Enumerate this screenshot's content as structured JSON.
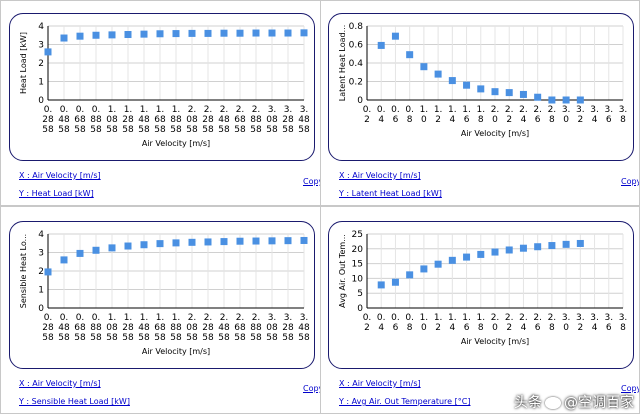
{
  "panels": [
    {
      "id": "heat-load",
      "x_link": "X : Air Velocity [m/s]",
      "y_link": "Y : Heat Load [kW]",
      "copy_label": "Copy",
      "chart_data": {
        "type": "scatter",
        "xlabel": "Air Velocity [m/s]",
        "ylabel": "Heat Load [kW]",
        "ylim": [
          0,
          4
        ],
        "yticks": [
          0,
          1,
          2,
          3,
          4
        ],
        "categories": [
          "0.2858",
          "0.4858",
          "0.6858",
          "0.8858",
          "1.0858",
          "1.2858",
          "1.4858",
          "1.6858",
          "1.8858",
          "2.0858",
          "2.2858",
          "2.4858",
          "2.6858",
          "2.8858",
          "3.0858",
          "3.2858",
          "3.4858"
        ],
        "tick_lines": [
          [
            "0.",
            "28",
            "58"
          ],
          [
            "0.",
            "48",
            "58"
          ],
          [
            "0.",
            "68",
            "58"
          ],
          [
            "0.",
            "88",
            "58"
          ],
          [
            "1.",
            "08",
            "58"
          ],
          [
            "1.",
            "28",
            "58"
          ],
          [
            "1.",
            "48",
            "58"
          ],
          [
            "1.",
            "68",
            "58"
          ],
          [
            "1.",
            "88",
            "58"
          ],
          [
            "2.",
            "08",
            "58"
          ],
          [
            "2.",
            "28",
            "58"
          ],
          [
            "2.",
            "48",
            "58"
          ],
          [
            "2.",
            "68",
            "58"
          ],
          [
            "2.",
            "88",
            "58"
          ],
          [
            "3.",
            "08",
            "58"
          ],
          [
            "3.",
            "28",
            "58"
          ],
          [
            "3.",
            "48",
            "58"
          ]
        ],
        "values": [
          2.6,
          3.35,
          3.45,
          3.5,
          3.52,
          3.54,
          3.56,
          3.58,
          3.59,
          3.6,
          3.6,
          3.61,
          3.61,
          3.62,
          3.62,
          3.62,
          3.63
        ],
        "color": "#4a90e2",
        "grid": true
      }
    },
    {
      "id": "latent-heat-load",
      "x_link": "X : Air Velocity [m/s]",
      "y_link": "Y : Latent Heat Load [kW]",
      "copy_label": "Copy",
      "chart_data": {
        "type": "scatter",
        "xlabel": "Air Velocity [m/s]",
        "ylabel": "Latent Heat Load...",
        "ylim": [
          0,
          0.8
        ],
        "yticks": [
          0,
          0.2,
          0.4,
          0.6,
          0.8
        ],
        "categories": [
          "0.2",
          "0.4",
          "0.6",
          "0.8",
          "1.0",
          "1.2",
          "1.4",
          "1.6",
          "1.8",
          "2.0",
          "2.2",
          "2.4",
          "2.6",
          "2.8",
          "3.0",
          "3.2",
          "3.4",
          "3.6",
          "3.8"
        ],
        "tick_lines": [
          [
            "0.",
            "2"
          ],
          [
            "0.",
            "4"
          ],
          [
            "0.",
            "6"
          ],
          [
            "0.",
            "8"
          ],
          [
            "1.",
            "0"
          ],
          [
            "1.",
            "2"
          ],
          [
            "1.",
            "4"
          ],
          [
            "1.",
            "6"
          ],
          [
            "1.",
            "8"
          ],
          [
            "2.",
            "0"
          ],
          [
            "2.",
            "2"
          ],
          [
            "2.",
            "4"
          ],
          [
            "2.",
            "6"
          ],
          [
            "2.",
            "8"
          ],
          [
            "3.",
            "0"
          ],
          [
            "3.",
            "2"
          ],
          [
            "3.",
            "4"
          ],
          [
            "3.",
            "6"
          ],
          [
            "3.",
            "8"
          ]
        ],
        "points": [
          {
            "i": 1,
            "v": 0.59
          },
          {
            "i": 2,
            "v": 0.69
          },
          {
            "i": 3,
            "v": 0.49
          },
          {
            "i": 4,
            "v": 0.36
          },
          {
            "i": 5,
            "v": 0.28
          },
          {
            "i": 6,
            "v": 0.21
          },
          {
            "i": 7,
            "v": 0.16
          },
          {
            "i": 8,
            "v": 0.12
          },
          {
            "i": 9,
            "v": 0.09
          },
          {
            "i": 10,
            "v": 0.08
          },
          {
            "i": 11,
            "v": 0.06
          },
          {
            "i": 12,
            "v": 0.03
          },
          {
            "i": 13,
            "v": 0.0
          },
          {
            "i": 14,
            "v": 0.0
          },
          {
            "i": 15,
            "v": 0.0
          }
        ],
        "color": "#4a90e2",
        "grid": true
      }
    },
    {
      "id": "sensible-heat-load",
      "x_link": "X : Air Velocity [m/s]",
      "y_link": "Y : Sensible Heat Load [kW]",
      "copy_label": "Copy",
      "chart_data": {
        "type": "scatter",
        "xlabel": "Air Velocity [m/s]",
        "ylabel": "Sensible Heat Lo...",
        "ylim": [
          0,
          4
        ],
        "yticks": [
          0,
          1,
          2,
          3,
          4
        ],
        "categories": [
          "0.2858",
          "0.4858",
          "0.6858",
          "0.8858",
          "1.0858",
          "1.2858",
          "1.4858",
          "1.6858",
          "1.8858",
          "2.0858",
          "2.2858",
          "2.4858",
          "2.6858",
          "2.8858",
          "3.0858",
          "3.2858",
          "3.4858"
        ],
        "tick_lines": [
          [
            "0.",
            "28",
            "58"
          ],
          [
            "0.",
            "48",
            "58"
          ],
          [
            "0.",
            "68",
            "58"
          ],
          [
            "0.",
            "88",
            "58"
          ],
          [
            "1.",
            "08",
            "58"
          ],
          [
            "1.",
            "28",
            "58"
          ],
          [
            "1.",
            "48",
            "58"
          ],
          [
            "1.",
            "68",
            "58"
          ],
          [
            "1.",
            "88",
            "58"
          ],
          [
            "2.",
            "08",
            "58"
          ],
          [
            "2.",
            "28",
            "58"
          ],
          [
            "2.",
            "48",
            "58"
          ],
          [
            "2.",
            "68",
            "58"
          ],
          [
            "2.",
            "88",
            "58"
          ],
          [
            "3.",
            "08",
            "58"
          ],
          [
            "3.",
            "28",
            "58"
          ],
          [
            "3.",
            "48",
            "58"
          ]
        ],
        "values": [
          1.95,
          2.6,
          2.95,
          3.12,
          3.25,
          3.35,
          3.42,
          3.48,
          3.52,
          3.55,
          3.57,
          3.59,
          3.61,
          3.62,
          3.63,
          3.64,
          3.65
        ],
        "color": "#4a90e2",
        "grid": true
      }
    },
    {
      "id": "avg-air-out-temperature",
      "x_link": "X : Air Velocity [m/s]",
      "y_link": "Y : Avg Air. Out Temperature [°C]",
      "copy_label": "Copy",
      "chart_data": {
        "type": "scatter",
        "xlabel": "Air Velocity [m/s]",
        "ylabel": "Avg Air. Out Tem...",
        "ylim": [
          0,
          25
        ],
        "yticks": [
          0,
          5,
          10,
          15,
          20,
          25
        ],
        "categories": [
          "0.2",
          "0.4",
          "0.6",
          "0.8",
          "1.0",
          "1.2",
          "1.4",
          "1.6",
          "1.8",
          "2.0",
          "2.2",
          "2.4",
          "2.6",
          "2.8",
          "3.0",
          "3.2",
          "3.4",
          "3.6",
          "3.8"
        ],
        "tick_lines": [
          [
            "0.",
            "2"
          ],
          [
            "0.",
            "4"
          ],
          [
            "0.",
            "6"
          ],
          [
            "0.",
            "8"
          ],
          [
            "1.",
            "0"
          ],
          [
            "1.",
            "2"
          ],
          [
            "1.",
            "4"
          ],
          [
            "1.",
            "6"
          ],
          [
            "1.",
            "8"
          ],
          [
            "2.",
            "0"
          ],
          [
            "2.",
            "2"
          ],
          [
            "2.",
            "4"
          ],
          [
            "2.",
            "6"
          ],
          [
            "2.",
            "8"
          ],
          [
            "3.",
            "0"
          ],
          [
            "3.",
            "2"
          ],
          [
            "3.",
            "4"
          ],
          [
            "3.",
            "6"
          ],
          [
            "3.",
            "8"
          ]
        ],
        "points": [
          {
            "i": 1,
            "v": 7.8
          },
          {
            "i": 2,
            "v": 8.7
          },
          {
            "i": 3,
            "v": 11.2
          },
          {
            "i": 4,
            "v": 13.2
          },
          {
            "i": 5,
            "v": 14.8
          },
          {
            "i": 6,
            "v": 16.1
          },
          {
            "i": 7,
            "v": 17.2
          },
          {
            "i": 8,
            "v": 18.1
          },
          {
            "i": 9,
            "v": 18.9
          },
          {
            "i": 10,
            "v": 19.6
          },
          {
            "i": 11,
            "v": 20.2
          },
          {
            "i": 12,
            "v": 20.7
          },
          {
            "i": 13,
            "v": 21.1
          },
          {
            "i": 14,
            "v": 21.5
          },
          {
            "i": 15,
            "v": 21.8
          }
        ],
        "color": "#4a90e2",
        "grid": true
      }
    }
  ],
  "watermark": {
    "left": "头条",
    "right": "@空调百家"
  }
}
